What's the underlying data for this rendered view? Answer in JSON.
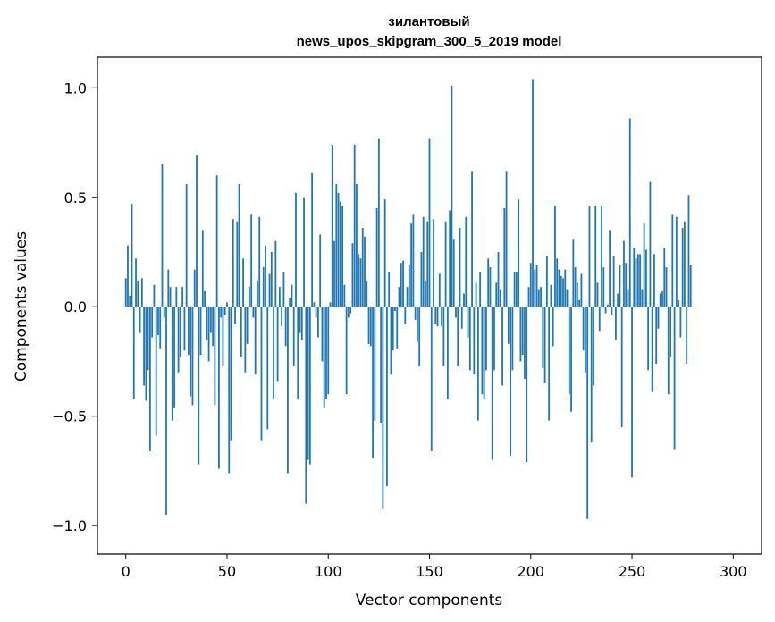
{
  "chart_data": {
    "type": "bar",
    "title_line1": "зилантовый",
    "title_line2": "news_upos_skipgram_300_5_2019 model",
    "xlabel": "Vector components",
    "ylabel": "Components values",
    "xlim": [
      -14,
      314
    ],
    "ylim": [
      -1.13,
      1.14
    ],
    "xticks": [
      0,
      50,
      100,
      150,
      200,
      250,
      300
    ],
    "yticks": [
      -1.0,
      -0.5,
      0.0,
      0.5,
      1.0
    ],
    "xtick_labels": [
      "0",
      "50",
      "100",
      "150",
      "200",
      "250",
      "300"
    ],
    "ytick_labels": [
      "−1.0",
      "−0.5",
      "0.0",
      "0.5",
      "1.0"
    ],
    "bar_color": "#1f77b4",
    "grid": false,
    "values": [
      0.13,
      0.28,
      0.05,
      0.47,
      -0.42,
      0.22,
      0.12,
      -0.12,
      0.13,
      -0.36,
      -0.43,
      -0.29,
      -0.66,
      -0.14,
      0.1,
      -0.59,
      -0.13,
      -0.19,
      0.65,
      -0.05,
      -0.95,
      0.17,
      0.09,
      -0.52,
      -0.46,
      0.09,
      -0.3,
      -0.23,
      0.09,
      -0.2,
      0.56,
      -0.22,
      -0.41,
      -0.45,
      0.17,
      0.69,
      -0.72,
      -0.22,
      0.35,
      0.07,
      -0.15,
      -0.25,
      -0.12,
      -0.18,
      -0.45,
      0.6,
      -0.74,
      -0.05,
      -0.27,
      -0.04,
      0.02,
      -0.76,
      -0.61,
      0.4,
      -0.08,
      0.39,
      0.56,
      -0.23,
      0.22,
      -0.3,
      -0.17,
      0.09,
      0.42,
      -0.05,
      -0.31,
      0.12,
      0.41,
      -0.61,
      0.18,
      0.28,
      -0.56,
      0.15,
      0.25,
      -0.42,
      0.3,
      -0.34,
      0.09,
      -0.09,
      0.16,
      -0.18,
      -0.76,
      0.04,
      0.1,
      -0.27,
      0.52,
      -0.42,
      -0.12,
      -0.15,
      0.5,
      -0.9,
      -0.7,
      -0.72,
      0.61,
      0.02,
      -0.05,
      -0.14,
      0.33,
      -0.25,
      -0.46,
      -0.42,
      -0.4,
      0.02,
      0.74,
      0.3,
      0.56,
      0.52,
      0.48,
      0.46,
      0.1,
      -0.4,
      -0.05,
      -0.03,
      0.29,
      0.74,
      0.56,
      0.24,
      0.22,
      0.36,
      0.32,
      0.12,
      -0.17,
      -0.18,
      -0.69,
      -0.52,
      0.45,
      0.77,
      -0.53,
      -0.92,
      0.49,
      -0.82,
      0.16,
      -0.31,
      -0.2,
      -0.02,
      -0.19,
      0.09,
      0.2,
      0.21,
      -0.08,
      0.09,
      0.19,
      0.38,
      0.42,
      -0.06,
      -0.16,
      -0.27,
      0.25,
      0.41,
      0.12,
      0.39,
      0.77,
      -0.66,
      0.4,
      -0.08,
      -0.09,
      0.15,
      -0.09,
      -0.27,
      0.39,
      -0.42,
      0.44,
      1.01,
      0.31,
      -0.05,
      -0.27,
      0.36,
      -0.1,
      0.06,
      0.41,
      -0.14,
      -0.29,
      0.62,
      -0.31,
      0.11,
      -0.52,
      0.16,
      -0.4,
      -0.42,
      -0.29,
      0.22,
      0.18,
      -0.7,
      -0.29,
      0.11,
      0.25,
      0.08,
      -0.36,
      0.45,
      0.62,
      -0.17,
      -0.68,
      -0.29,
      0.16,
      0.16,
      0.49,
      -0.25,
      -0.22,
      -0.33,
      -0.71,
      0.09,
      0.2,
      1.04,
      0.17,
      0.19,
      0.08,
      0.09,
      -0.28,
      -0.35,
      0.23,
      -0.52,
      0.1,
      -0.18,
      0.46,
      0.22,
      0.17,
      0.14,
      0.13,
      0.17,
      0.08,
      -0.4,
      -0.48,
      0.31,
      0.18,
      0.11,
      0.03,
      0.15,
      -0.2,
      -0.3,
      -0.97,
      0.46,
      -0.62,
      -0.36,
      0.46,
      0.11,
      -0.11,
      0.46,
      0.18,
      -0.03,
      0.01,
      0.35,
      -0.04,
      0.23,
      -0.15,
      0.06,
      0.19,
      -0.55,
      0.3,
      0.2,
      0.08,
      0.86,
      -0.78,
      0.27,
      0.22,
      0.24,
      0.24,
      0.08,
      0.38,
      0.26,
      -0.29,
      0.57,
      -0.39,
      0.24,
      -0.26,
      -0.1,
      0.06,
      0.07,
      0.27,
      0.18,
      -0.4,
      -0.23,
      0.42,
      -0.65,
      0.41,
      0.03,
      -0.14,
      0.36,
      0.39,
      -0.26,
      0.51,
      0.19
    ]
  }
}
